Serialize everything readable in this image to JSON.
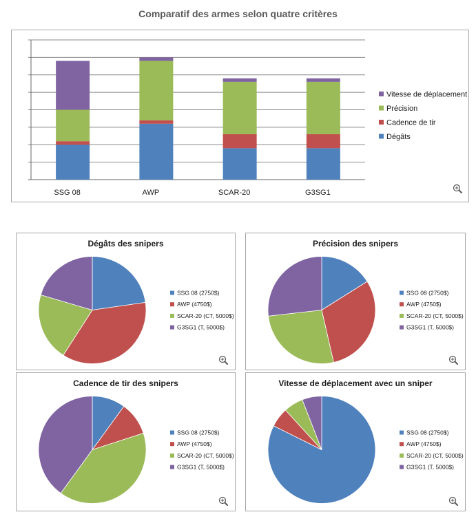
{
  "page": {
    "title": "Comparatif des armes selon quatre critères"
  },
  "icons": {
    "zoom": "zoom-in-icon"
  },
  "colors": {
    "Dégâts": "#4F81BD",
    "Cadence de tir": "#C0504D",
    "Précision": "#9BBB59",
    "Vitesse de déplacement": "#8064A2",
    "gridline": "#888888",
    "border": "#a6a6a6"
  },
  "chart_data": [
    {
      "type": "bar",
      "stacked": true,
      "title": "",
      "categories": [
        "SSG 08",
        "AWP",
        "SCAR-20",
        "G3SG1"
      ],
      "series": [
        {
          "name": "Dégâts",
          "values": [
            2.0,
            3.2,
            1.8,
            1.8
          ]
        },
        {
          "name": "Cadence de tir",
          "values": [
            0.2,
            0.2,
            0.8,
            0.8
          ]
        },
        {
          "name": "Précision",
          "values": [
            1.8,
            3.4,
            3.0,
            3.0
          ]
        },
        {
          "name": "Vitesse de déplacement",
          "values": [
            2.8,
            0.2,
            0.2,
            0.2
          ]
        }
      ],
      "ylim": [
        0,
        8
      ],
      "grid": true,
      "legend": "right"
    },
    {
      "type": "pie",
      "title": "Dégâts des snipers",
      "categories": [
        "SSG 08 (2750$)",
        "AWP (4750$)",
        "SCAR-20 (CT, 5000$)",
        "G3SG1 (T, 5000$)"
      ],
      "values": [
        2.0,
        3.2,
        1.8,
        1.8
      ],
      "legend": "right"
    },
    {
      "type": "pie",
      "title": "Précision des snipers",
      "categories": [
        "SSG 08 (2750$)",
        "AWP (4750$)",
        "SCAR-20 (CT, 5000$)",
        "G3SG1 (T, 5000$)"
      ],
      "values": [
        1.8,
        3.4,
        3.0,
        3.0
      ],
      "legend": "right"
    },
    {
      "type": "pie",
      "title": "Cadence de tir des snipers",
      "categories": [
        "SSG 08 (2750$)",
        "AWP (4750$)",
        "SCAR-20 (CT, 5000$)",
        "G3SG1 (T, 5000$)"
      ],
      "values": [
        0.2,
        0.2,
        0.8,
        0.8
      ],
      "legend": "right"
    },
    {
      "type": "pie",
      "title": "Vitesse de déplacement avec un sniper",
      "categories": [
        "SSG 08 (2750$)",
        "AWP (4750$)",
        "SCAR-20 (CT, 5000$)",
        "G3SG1 (T, 5000$)"
      ],
      "values": [
        2.8,
        0.2,
        0.2,
        0.2
      ],
      "legend": "right"
    }
  ]
}
